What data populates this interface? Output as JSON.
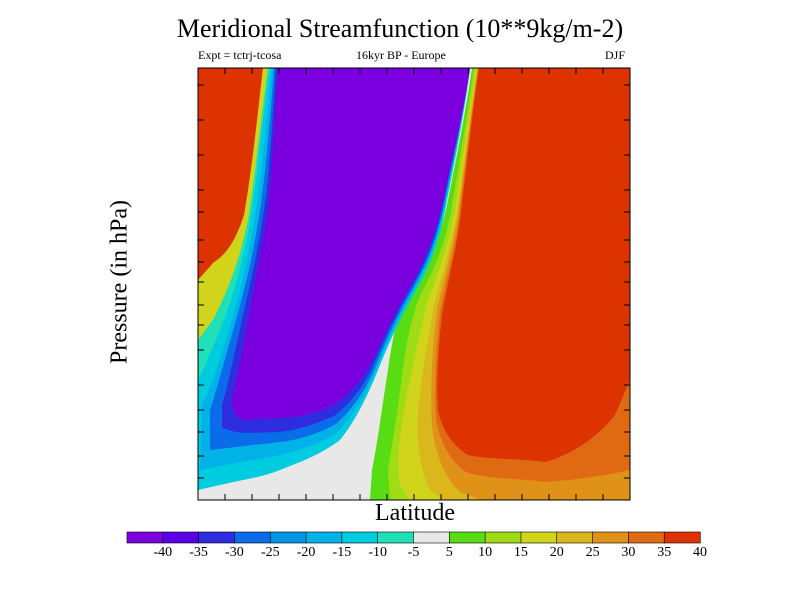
{
  "chart_data": {
    "type": "filled-contour",
    "title": "Meridional Streamfunction (10**9kg/m-2)",
    "experiment": "Expt = tctrj-tcosa",
    "period": "16kyr BP - Europe",
    "season": "DJF",
    "xlabel": "Latitude",
    "ylabel": "Pressure (in hPa)",
    "colorbar": {
      "tick_labels": [
        "-40",
        "-35",
        "-30",
        "-25",
        "-20",
        "-15",
        "-10",
        "-5",
        "5",
        "10",
        "15",
        "20",
        "25",
        "30",
        "35",
        "40"
      ],
      "colors": [
        "#7a00e0",
        "#5a00e6",
        "#2e2ee0",
        "#0a6ce8",
        "#0096e6",
        "#00b2e8",
        "#00cce0",
        "#20e0b8",
        "#e8e8e8",
        "#58dc14",
        "#a0dc14",
        "#d0d41a",
        "#dab81c",
        "#e09218",
        "#e06a14",
        "#dd3300"
      ]
    },
    "regions": [
      {
        "name": "northern-positive-cell",
        "sign": "positive",
        "level": "40"
      },
      {
        "name": "central-negative-cell",
        "sign": "negative",
        "level": "-40"
      },
      {
        "name": "upper-left-positive-cell",
        "sign": "positive",
        "level": "40"
      }
    ]
  }
}
